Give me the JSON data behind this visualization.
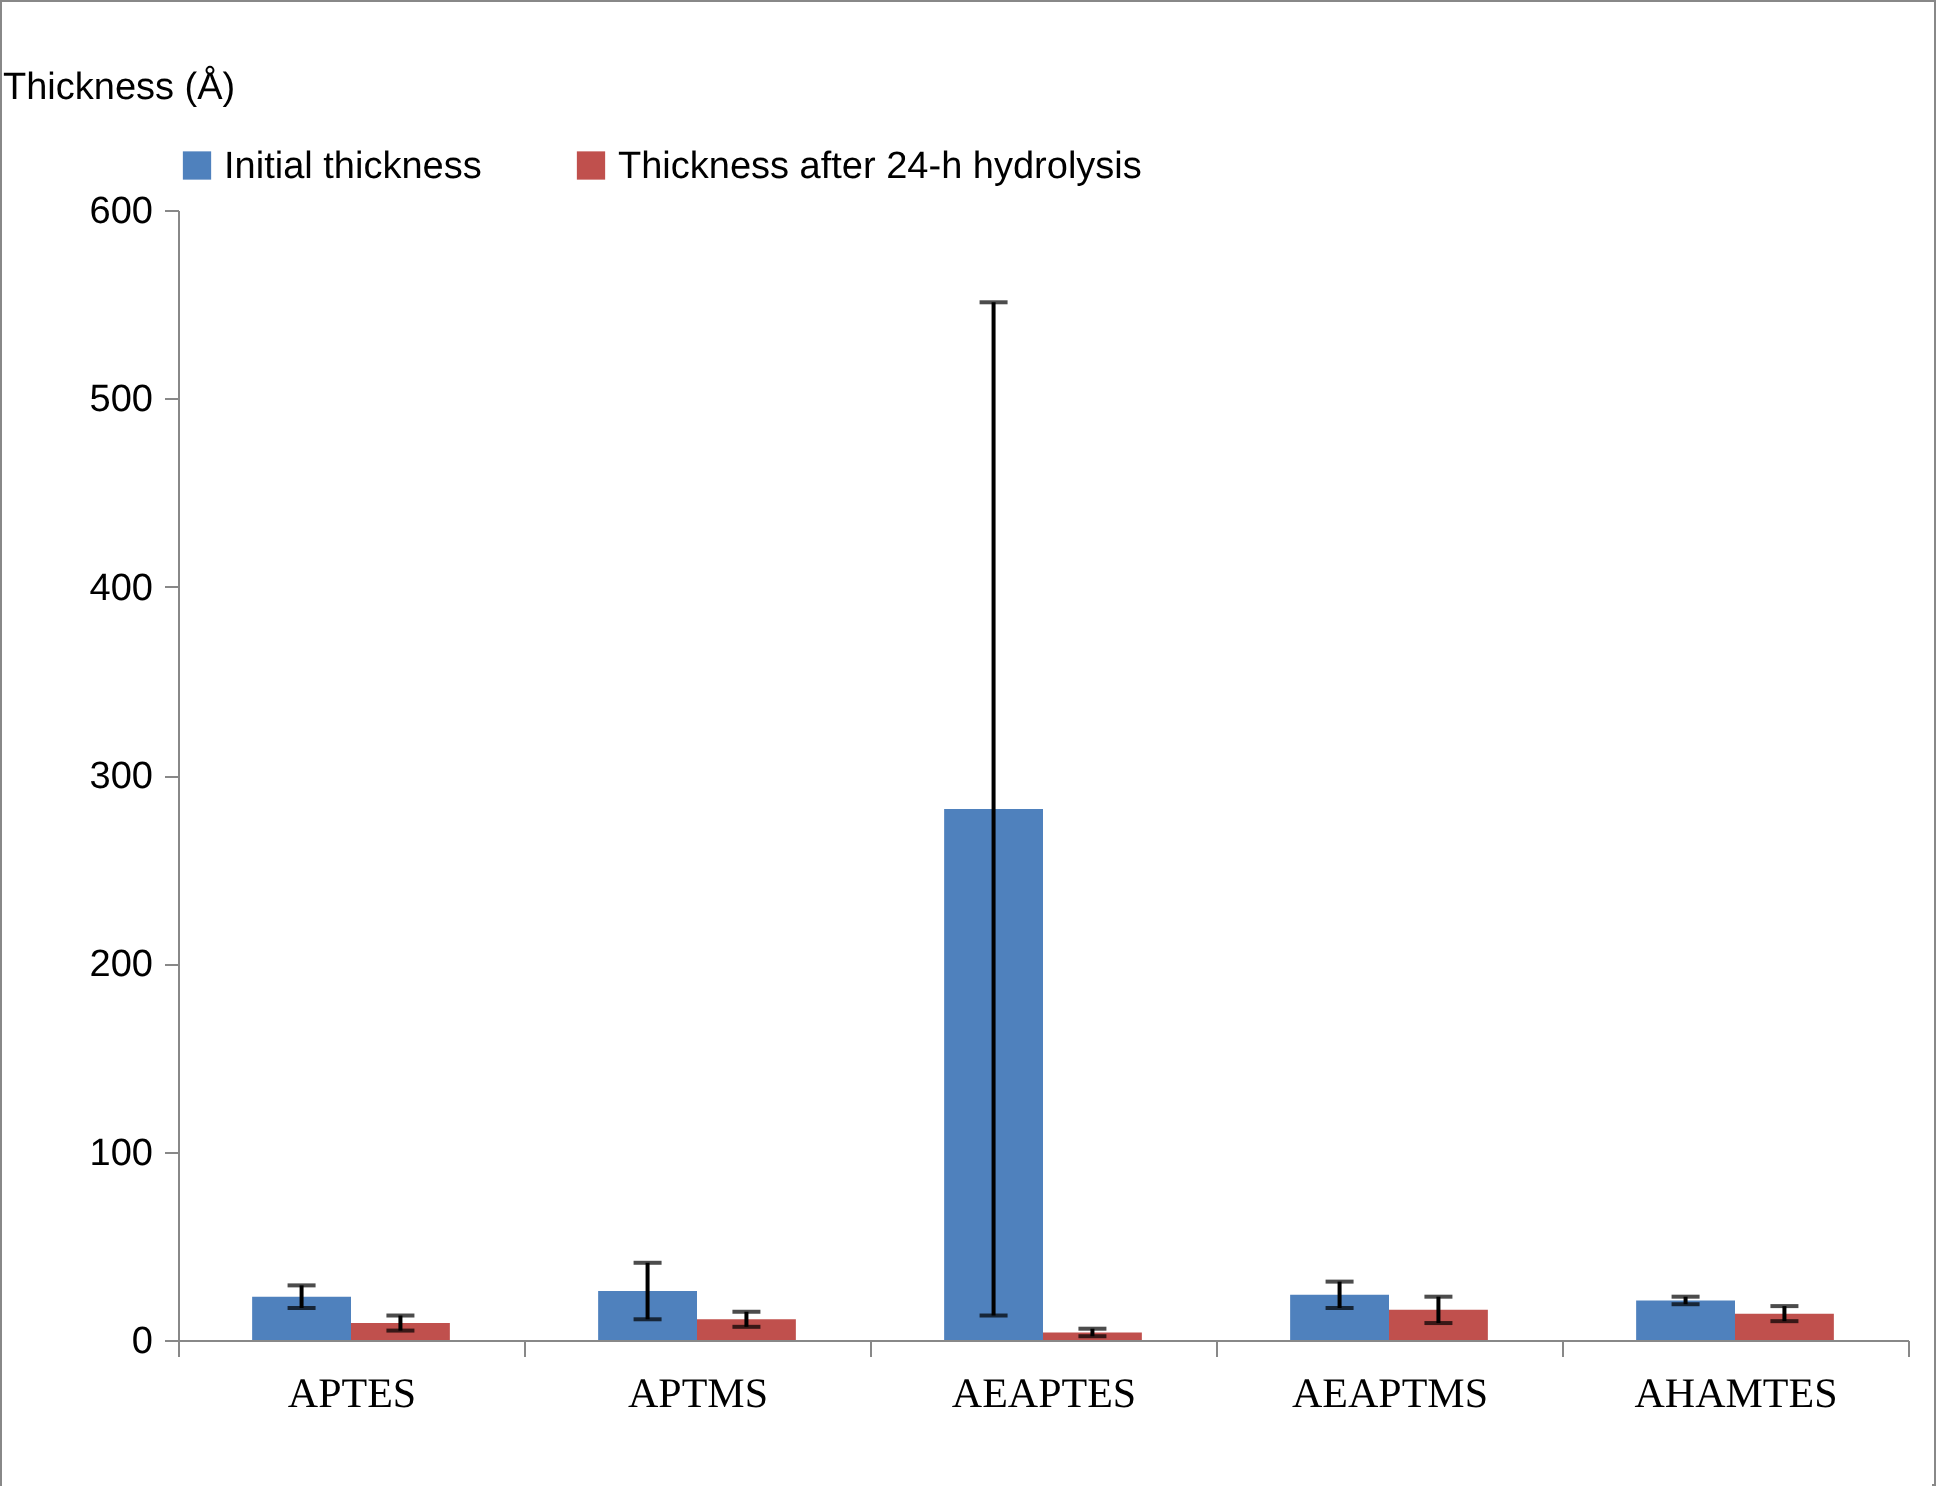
{
  "chart_data": {
    "type": "bar",
    "ylabel": "Thickness (Å)",
    "categories": [
      "APTES",
      "APTMS",
      "AEAPTES",
      "AEAPTMS",
      "AHAMTES"
    ],
    "series": [
      {
        "name": "Initial thickness",
        "color": "#4f81bd",
        "values": [
          23,
          26,
          282,
          24,
          21
        ],
        "errors": [
          6,
          15,
          269,
          7,
          2
        ]
      },
      {
        "name": "Thickness after 24-h hydrolysis",
        "color": "#c0504d",
        "values": [
          9,
          11,
          4,
          16,
          14
        ],
        "errors": [
          4,
          4,
          2,
          7,
          4
        ]
      }
    ],
    "ylim": [
      0,
      600
    ],
    "yticks": [
      0,
      100,
      200,
      300,
      400,
      500,
      600
    ],
    "grid": false,
    "legend": "top"
  }
}
